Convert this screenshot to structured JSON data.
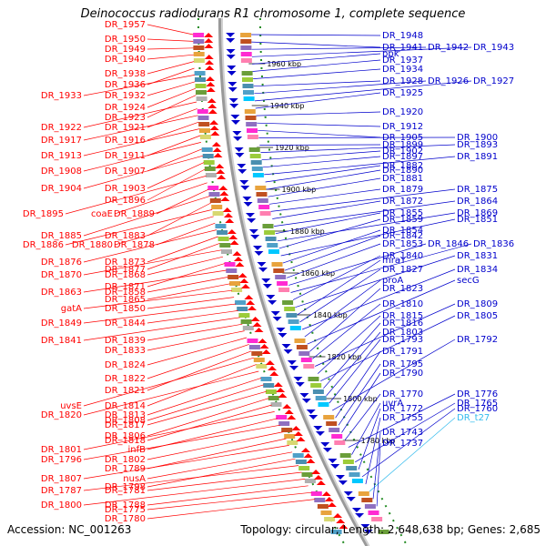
{
  "title": "Deinococcus radiodurans R1 chromosome 1, complete sequence",
  "accession": "Accession: NC_001263",
  "topology": "Topology: circular; Length: 2,648,638 bp; Genes: 2,685",
  "colors": {
    "left_strand": "#ff0000",
    "right_strand": "#0000cc",
    "rna": "#33bbee",
    "backbone": "#999999",
    "tick": "#228b22"
  },
  "kbp_ticks": [
    "1960 kbp",
    "1940 kbp",
    "1920 kbp",
    "1900 kbp",
    "1880 kbp",
    "1860 kbp",
    "1840 kbp",
    "1820 kbp",
    "1800 kbp",
    "1780 kbp"
  ],
  "left_labels": [
    "DR_1957",
    "DR_1950",
    "DR_1949",
    "DR_1940",
    "DR_1938",
    "DR_1936",
    "DR_1933",
    "DR_1932",
    "DR_1924",
    "DR_1923",
    "DR_1922",
    "DR_1921",
    "DR_1917",
    "DR_1916",
    "DR_1913",
    "DR_1911",
    "DR_1908",
    "DR_1907",
    "DR_1904",
    "DR_1903",
    "DR_1896",
    "DR_1895",
    "coaE",
    "DR_1889",
    "DR_1885",
    "DR_1883",
    "DR_1886",
    "DR_1880",
    "DR_1878",
    "DR_1876",
    "DR_1873",
    "DR_1877",
    "DR_1870",
    "DR_1868",
    "DR_1871",
    "DR_1863",
    "DR_1858",
    "DR_1865",
    "gatA",
    "DR_1850",
    "DR_1849",
    "DR_1844",
    "DR_1841",
    "DR_1839",
    "DR_1833",
    "DR_1824",
    "DR_1822",
    "DR_1821",
    "uvsE",
    "DR_1814",
    "DR_1820",
    "DR_1813",
    "DR_1808",
    "DR_1817",
    "DR_1806",
    "DR_1818",
    "DR_1801",
    "infB",
    "DR_1796",
    "DR_1802",
    "DR_1789",
    "DR_1807",
    "nusA",
    "DR_1798",
    "DR_1787",
    "DR_1781",
    "DR_1800",
    "DR_1788",
    "DR_1775",
    "DR_1780",
    "DR_1769",
    "DR_1773"
  ],
  "right_labels": [
    "DR_1948",
    "DR_1941",
    "DR_1942",
    "DR_1943",
    "ppk",
    "DR_1937",
    "DR_1934",
    "DR_1928",
    "DR_1926",
    "DR_1927",
    "DR_1925",
    "DR_1920",
    "DR_1912",
    "DR_1905",
    "DR_1900",
    "DR_1899",
    "DR_1893",
    "DR_1902",
    "DR_1897",
    "DR_1891",
    "DR_1882",
    "DR_1890",
    "DR_1881",
    "DR_1879",
    "DR_1875",
    "DR_1872",
    "DR_1864",
    "DR_1855",
    "DR_1869",
    "DR_1859",
    "DR_1851",
    "DR_1854",
    "DR_1842",
    "DR_1853",
    "DR_1846",
    "DR_1836",
    "DR_1840",
    "DR_1831",
    "mraY",
    "DR_1827",
    "DR_1834",
    "proA",
    "secG",
    "DR_1823",
    "DR_1810",
    "DR_1809",
    "DR_1815",
    "DR_1805",
    "DR_1816",
    "DR_1803",
    "DR_1793",
    "DR_1792",
    "DR_1791",
    "DR_1795",
    "DR_1790",
    "DR_1770",
    "DR_1776",
    "uvrA",
    "DR_1765",
    "DR_1772",
    "DR_1760",
    "DR_1755",
    "DR_t27",
    "DR_1743",
    "DR_1737"
  ]
}
